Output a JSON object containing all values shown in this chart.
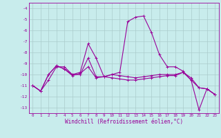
{
  "bg_color": "#c8ecec",
  "grid_color": "#aacccc",
  "line_color": "#990099",
  "xlim": [
    -0.5,
    23.5
  ],
  "ylim": [
    -13.5,
    -3.5
  ],
  "yticks": [
    -4,
    -5,
    -6,
    -7,
    -8,
    -9,
    -10,
    -11,
    -12,
    -13
  ],
  "xticks": [
    0,
    1,
    2,
    3,
    4,
    5,
    6,
    7,
    8,
    9,
    10,
    11,
    12,
    13,
    14,
    15,
    16,
    17,
    18,
    19,
    20,
    21,
    22,
    23
  ],
  "xlabel": "Windchill (Refroidissement éolien,°C)",
  "series1": [
    [
      0,
      -11.0
    ],
    [
      1,
      -11.5
    ],
    [
      2,
      -10.0
    ],
    [
      3,
      -9.2
    ],
    [
      4,
      -9.5
    ],
    [
      5,
      -10.0
    ],
    [
      6,
      -9.8
    ],
    [
      7,
      -7.2
    ],
    [
      8,
      -8.5
    ],
    [
      9,
      -10.2
    ],
    [
      10,
      -10.0
    ],
    [
      11,
      -9.8
    ],
    [
      12,
      -5.2
    ],
    [
      13,
      -4.8
    ],
    [
      14,
      -4.7
    ],
    [
      15,
      -6.2
    ],
    [
      16,
      -8.2
    ],
    [
      17,
      -9.3
    ],
    [
      18,
      -9.3
    ],
    [
      19,
      -9.7
    ],
    [
      20,
      -10.5
    ],
    [
      21,
      -13.2
    ],
    [
      22,
      -11.3
    ],
    [
      23,
      -11.8
    ]
  ],
  "series2": [
    [
      0,
      -11.0
    ],
    [
      1,
      -11.5
    ],
    [
      2,
      -10.0
    ],
    [
      3,
      -9.2
    ],
    [
      4,
      -9.5
    ],
    [
      5,
      -10.1
    ],
    [
      6,
      -9.9
    ],
    [
      7,
      -9.3
    ],
    [
      8,
      -10.3
    ],
    [
      9,
      -10.2
    ],
    [
      10,
      -10.3
    ],
    [
      11,
      -10.4
    ],
    [
      12,
      -10.5
    ],
    [
      13,
      -10.5
    ],
    [
      14,
      -10.4
    ],
    [
      15,
      -10.3
    ],
    [
      16,
      -10.2
    ],
    [
      17,
      -10.1
    ],
    [
      18,
      -10.1
    ],
    [
      19,
      -9.8
    ],
    [
      20,
      -10.5
    ],
    [
      21,
      -11.2
    ],
    [
      22,
      -11.3
    ],
    [
      23,
      -11.8
    ]
  ],
  "series3": [
    [
      0,
      -11.0
    ],
    [
      1,
      -11.5
    ],
    [
      2,
      -10.5
    ],
    [
      3,
      -9.3
    ],
    [
      4,
      -9.3
    ],
    [
      5,
      -10.0
    ],
    [
      6,
      -10.0
    ],
    [
      7,
      -8.5
    ],
    [
      8,
      -10.2
    ],
    [
      9,
      -10.2
    ],
    [
      10,
      -10.0
    ],
    [
      11,
      -10.1
    ],
    [
      12,
      -10.2
    ],
    [
      13,
      -10.3
    ],
    [
      14,
      -10.2
    ],
    [
      15,
      -10.1
    ],
    [
      16,
      -10.0
    ],
    [
      17,
      -10.0
    ],
    [
      18,
      -10.0
    ],
    [
      19,
      -9.8
    ],
    [
      20,
      -10.3
    ],
    [
      21,
      -11.2
    ],
    [
      22,
      -11.3
    ],
    [
      23,
      -11.8
    ]
  ]
}
